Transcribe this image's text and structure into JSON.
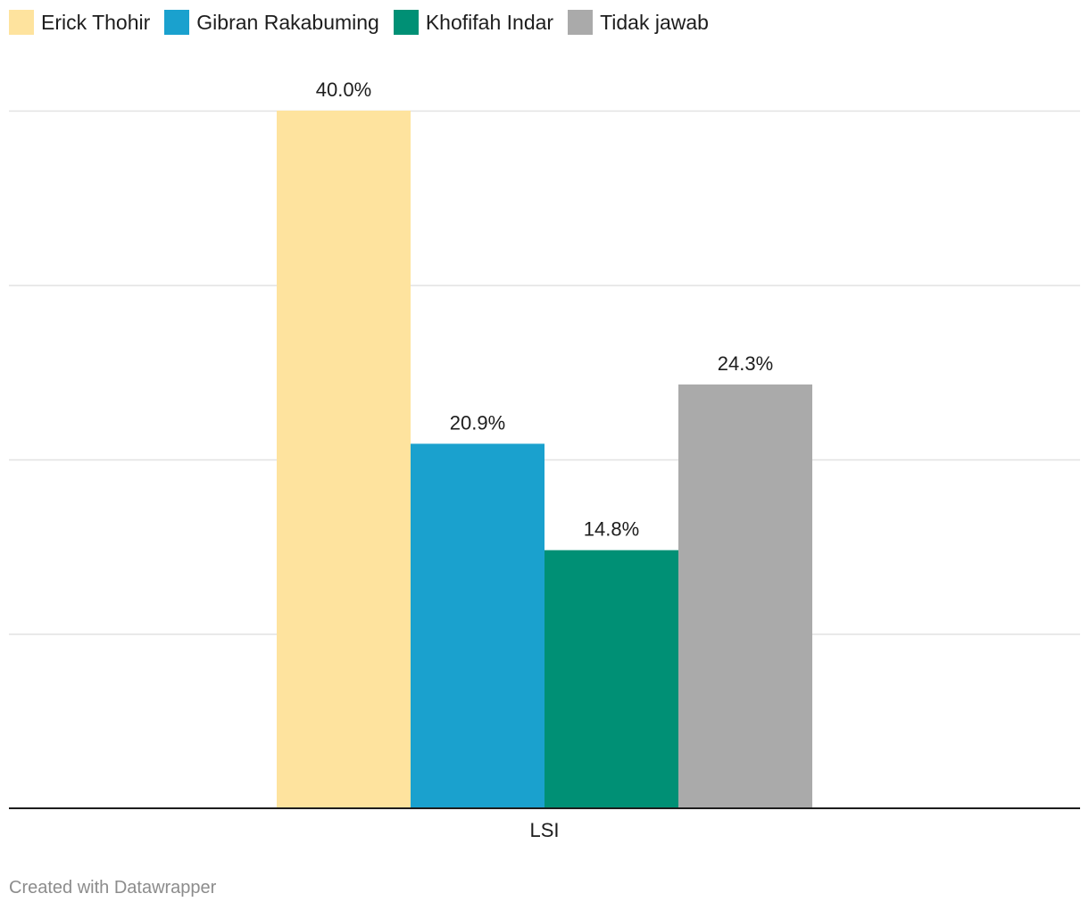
{
  "chart_data": {
    "type": "bar",
    "categories": [
      "LSI"
    ],
    "series": [
      {
        "name": "Erick Thohir",
        "values": [
          40.0
        ],
        "color": "#fee39e"
      },
      {
        "name": "Gibran Rakabuming",
        "values": [
          20.9
        ],
        "color": "#1aa1ce"
      },
      {
        "name": "Khofifah Indar",
        "values": [
          14.8
        ],
        "color": "#009075"
      },
      {
        "name": "Tidak jawab",
        "values": [
          24.3
        ],
        "color": "#aaaaaa"
      }
    ],
    "data_labels": [
      "40.0%",
      "20.9%",
      "14.8%",
      "24.3%"
    ],
    "ylim": [
      0,
      40
    ],
    "gridlines": [
      10,
      20,
      30,
      40
    ],
    "grid": true,
    "legend_position": "top-left",
    "title": "",
    "xlabel": "",
    "ylabel": ""
  },
  "footer": {
    "credit": "Created with Datawrapper"
  }
}
